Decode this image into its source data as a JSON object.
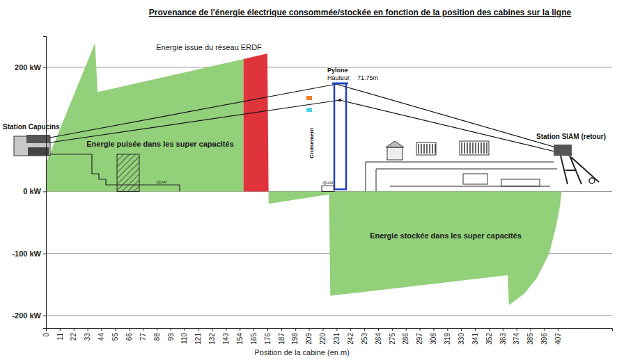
{
  "chart_data": {
    "type": "area",
    "title": "Provenance de l'énergie électrique consommée/stockée en fonction de la position des cabines sur la ligne",
    "x_label": "Position de la cabine (en m)",
    "xlim": [
      0,
      450
    ],
    "xticks": [
      0,
      11,
      22,
      33,
      44,
      55,
      66,
      77,
      88,
      99,
      110,
      121,
      132,
      143,
      154,
      165,
      176,
      187,
      198,
      209,
      220,
      231,
      242,
      253,
      264,
      275,
      286,
      297,
      308,
      319,
      330,
      341,
      352,
      363,
      374,
      385,
      396,
      407
    ],
    "ylim": [
      -220,
      250
    ],
    "yticks": [
      {
        "value": -200,
        "label": "-200 kW"
      },
      {
        "value": -100,
        "label": "-100 kW"
      },
      {
        "value": 0,
        "label": "0 kW"
      },
      {
        "value": 200,
        "label": "200 kW"
      }
    ],
    "grid": true,
    "series": [
      {
        "name": "Energie puisée dans les super capacités",
        "color": "#92d07a",
        "x": [
          0,
          39,
          41,
          157
        ],
        "values": [
          45,
          239,
          160,
          213
        ]
      },
      {
        "name": "Energie issue du réseau ERDF",
        "color": "#e0343c",
        "x": [
          157,
          176,
          177
        ],
        "values": [
          213,
          222,
          -22
        ]
      },
      {
        "name": "Energie stockée dans les super capacités",
        "color": "#92d07a",
        "x": [
          177,
          225,
          226,
          367,
          368,
          380,
          390,
          400,
          405,
          408,
          410
        ],
        "values": [
          -20,
          -5,
          -168,
          -135,
          -183,
          -165,
          -140,
          -100,
          -60,
          -30,
          0
        ]
      }
    ],
    "annotations": [
      "Station Capucins",
      "Station SIAM (retour)",
      "Pylone",
      "Hauteur",
      "71.75m",
      "Croisement",
      "QUAI",
      "QUAI"
    ]
  }
}
